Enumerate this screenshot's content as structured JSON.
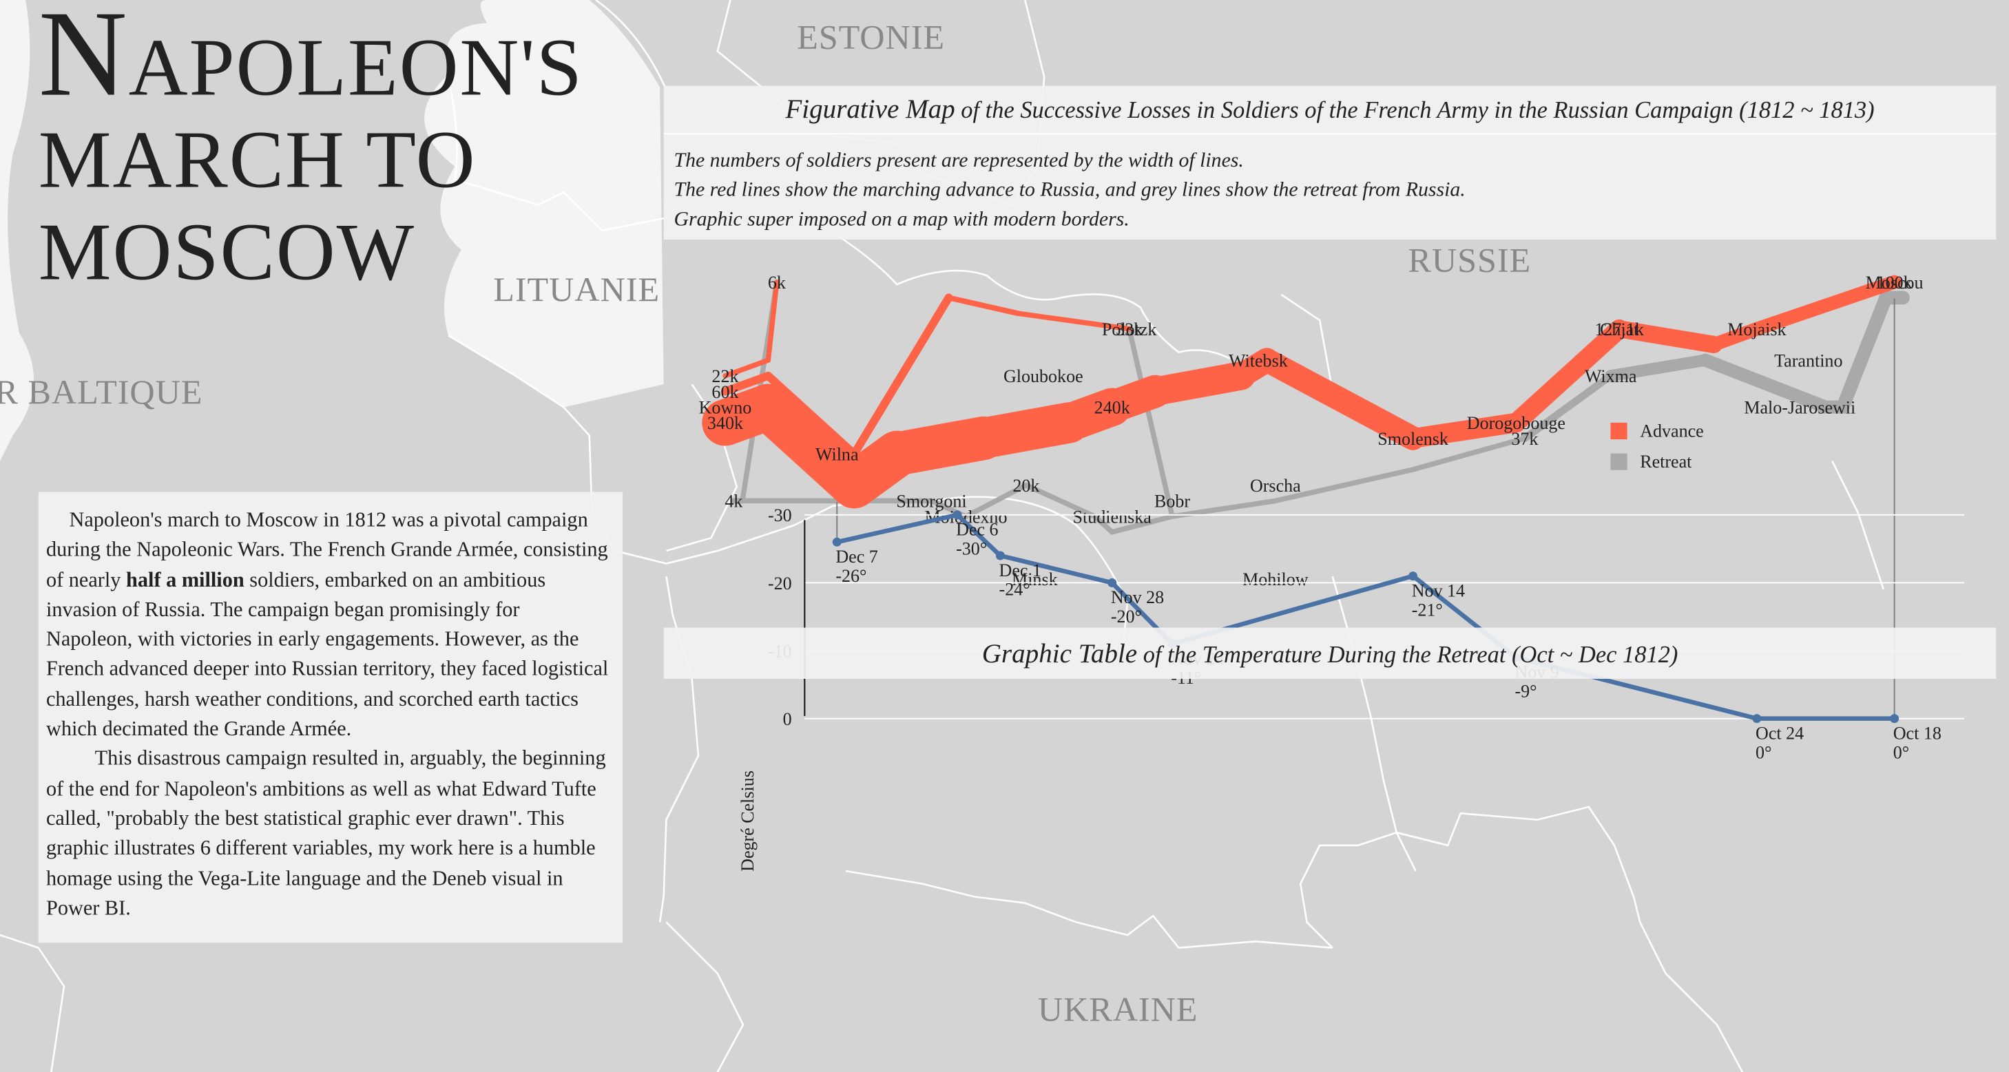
{
  "title": {
    "first_letter": "N",
    "line1_rest": "APOLEON'S",
    "line2": "MARCH TO",
    "line3": "MOSCOW"
  },
  "countries": {
    "estonia": "ESTONIE",
    "lithuania": "LITUANIE",
    "baltic": "R BALTIQUE",
    "russia": "RUSSIE",
    "ukraine": "UKRAINE"
  },
  "map_caption": {
    "title_em": "Figurative Map",
    "title_rest": " of the Successive Losses in Soldiers of the French Army in the Russian Campaign (1812 ~ 1813)",
    "lines": [
      "The numbers of soldiers present are represented by the width of lines.",
      "The red lines show the marching advance to Russia, and grey lines show the retreat from Russia.",
      "Graphic super imposed on a map with modern borders."
    ]
  },
  "temp_caption": {
    "title_em": "Graphic Table",
    "title_rest": " of the Temperature During the Retreat (Oct ~ Dec 1812)"
  },
  "description": {
    "p1_before": "Napoleon's march to Moscow in 1812 was a pivotal campaign during the Napoleonic Wars. The French Grande Armée, consisting of nearly ",
    "p1_bold": "half a million",
    "p1_after": " soldiers, embarked on an ambitious invasion of Russia. The campaign began promisingly for Napoleon, with victories in early engagements. However, as the French advanced deeper into Russian territory, they faced logistical challenges, harsh weather conditions, and scorched earth tactics which decimated the Grande Armée.",
    "p2": "This disastrous campaign resulted in, arguably, the beginning of the end for Napoleon's ambitions as well as what Edward Tufte called, \"probably the best statistical graphic ever drawn\".  This graphic illustrates 6 different variables, my work here is a humble homage using the Vega-Lite language and the Deneb visual in Power BI."
  },
  "colors": {
    "advance": "#ff6347",
    "retreat": "#a9a9a9",
    "temperature": "#4a72a4",
    "background": "#d4d4d4",
    "sea": "#f4f4f4",
    "panel": "#f2f2f2"
  },
  "chart_data": [
    {
      "type": "line",
      "subtype": "flow-map",
      "legend": {
        "position": "right",
        "entries": [
          {
            "label": "Advance",
            "color": "#ff6347"
          },
          {
            "label": "Retreat",
            "color": "#a9a9a9"
          }
        ]
      },
      "coordinates": "lon/lat",
      "series": [
        {
          "name": "Advance",
          "direction": "A",
          "group": 1,
          "points": [
            {
              "lon": 24.0,
              "lat": 54.9,
              "survivors": 340000
            },
            {
              "lon": 24.5,
              "lat": 55.0,
              "survivors": 340000
            },
            {
              "lon": 25.5,
              "lat": 54.5,
              "survivors": 340000
            },
            {
              "lon": 26.0,
              "lat": 54.7,
              "survivors": 320000
            },
            {
              "lon": 27.0,
              "lat": 54.8,
              "survivors": 300000
            },
            {
              "lon": 28.0,
              "lat": 54.9,
              "survivors": 280000
            },
            {
              "lon": 28.5,
              "lat": 55.0,
              "survivors": 240000
            },
            {
              "lon": 29.0,
              "lat": 55.1,
              "survivors": 210000
            },
            {
              "lon": 30.0,
              "lat": 55.2,
              "survivors": 180000
            },
            {
              "lon": 30.3,
              "lat": 55.3,
              "survivors": 175000
            },
            {
              "lon": 32.0,
              "lat": 54.8,
              "survivors": 145000
            },
            {
              "lon": 33.2,
              "lat": 54.9,
              "survivors": 140000
            },
            {
              "lon": 34.4,
              "lat": 55.5,
              "survivors": 127100
            },
            {
              "lon": 35.5,
              "lat": 55.4,
              "survivors": 100000
            },
            {
              "lon": 36.0,
              "lat": 55.5,
              "survivors": 100000
            },
            {
              "lon": 37.6,
              "lat": 55.8,
              "survivors": 100000
            }
          ]
        },
        {
          "name": "Retreat",
          "direction": "R",
          "group": 1,
          "points": [
            {
              "lon": 37.7,
              "lat": 55.7,
              "survivors": 100000
            },
            {
              "lon": 37.5,
              "lat": 55.7,
              "survivors": 98000
            },
            {
              "lon": 37.0,
              "lat": 55.0,
              "survivors": 97000
            },
            {
              "lon": 36.8,
              "lat": 55.0,
              "survivors": 96000
            },
            {
              "lon": 35.4,
              "lat": 55.3,
              "survivors": 87000
            },
            {
              "lon": 34.3,
              "lat": 55.2,
              "survivors": 55000
            },
            {
              "lon": 33.3,
              "lat": 54.8,
              "survivors": 37000
            },
            {
              "lon": 32.0,
              "lat": 54.6,
              "survivors": 24000
            },
            {
              "lon": 30.4,
              "lat": 54.4,
              "survivors": 20000
            },
            {
              "lon": 29.2,
              "lat": 54.3,
              "survivors": 20000
            },
            {
              "lon": 28.5,
              "lat": 54.2,
              "survivors": 20000
            },
            {
              "lon": 28.3,
              "lat": 54.3,
              "survivors": 20000
            },
            {
              "lon": 27.5,
              "lat": 54.5,
              "survivors": 20000
            },
            {
              "lon": 26.8,
              "lat": 54.3,
              "survivors": 12000
            },
            {
              "lon": 26.4,
              "lat": 54.4,
              "survivors": 14000
            },
            {
              "lon": 25.0,
              "lat": 54.4,
              "survivors": 8000
            },
            {
              "lon": 24.4,
              "lat": 54.4,
              "survivors": 4000
            },
            {
              "lon": 24.2,
              "lat": 54.4,
              "survivors": 4000
            },
            {
              "lon": 24.1,
              "lat": 54.4,
              "survivors": 4000
            }
          ]
        },
        {
          "name": "Advance",
          "direction": "A",
          "group": 2,
          "points": [
            {
              "lon": 24.0,
              "lat": 55.1,
              "survivors": 60000
            },
            {
              "lon": 24.5,
              "lat": 55.2,
              "survivors": 60000
            },
            {
              "lon": 25.5,
              "lat": 54.7,
              "survivors": 60000
            },
            {
              "lon": 26.6,
              "lat": 55.7,
              "survivors": 40000
            },
            {
              "lon": 27.4,
              "lat": 55.6,
              "survivors": 33000
            },
            {
              "lon": 28.7,
              "lat": 55.5,
              "survivors": 33000
            }
          ]
        },
        {
          "name": "Retreat",
          "direction": "R",
          "group": 2,
          "points": [
            {
              "lon": 28.7,
              "lat": 55.5,
              "survivors": 33000
            },
            {
              "lon": 29.2,
              "lat": 54.3,
              "survivors": 30000
            },
            {
              "lon": 28.5,
              "lat": 54.2,
              "survivors": 30000
            },
            {
              "lon": 28.3,
              "lat": 54.3,
              "survivors": 28000
            }
          ]
        },
        {
          "name": "Advance",
          "direction": "A",
          "group": 3,
          "points": [
            {
              "lon": 24.0,
              "lat": 55.2,
              "survivors": 22000
            },
            {
              "lon": 24.5,
              "lat": 55.3,
              "survivors": 22000
            },
            {
              "lon": 24.6,
              "lat": 55.8,
              "survivors": 6000
            }
          ]
        },
        {
          "name": "Retreat",
          "direction": "R",
          "group": 3,
          "points": [
            {
              "lon": 24.6,
              "lat": 55.8,
              "survivors": 6000
            },
            {
              "lon": 24.2,
              "lat": 54.4,
              "survivors": 6000
            },
            {
              "lon": 24.1,
              "lat": 54.4,
              "survivors": 6000
            }
          ]
        }
      ],
      "cities": [
        {
          "name": "Kowno",
          "lon": 24.0,
          "lat": 55.0
        },
        {
          "name": "Wilna",
          "lon": 25.3,
          "lat": 54.7
        },
        {
          "name": "Smorgoni",
          "lon": 26.4,
          "lat": 54.4
        },
        {
          "name": "Moiodexno",
          "lon": 26.8,
          "lat": 54.3
        },
        {
          "name": "Gloubokoe",
          "lon": 27.7,
          "lat": 55.2
        },
        {
          "name": "Minsk",
          "lon": 27.6,
          "lat": 53.9
        },
        {
          "name": "Studienska",
          "lon": 28.5,
          "lat": 54.3
        },
        {
          "name": "Polotzk",
          "lon": 28.7,
          "lat": 55.5
        },
        {
          "name": "Bobr",
          "lon": 29.2,
          "lat": 54.4
        },
        {
          "name": "Witebsk",
          "lon": 30.2,
          "lat": 55.3
        },
        {
          "name": "Orscha",
          "lon": 30.4,
          "lat": 54.5
        },
        {
          "name": "Mohilow",
          "lon": 30.4,
          "lat": 53.9
        },
        {
          "name": "Smolensk",
          "lon": 32.0,
          "lat": 54.8
        },
        {
          "name": "Dorogobouge",
          "lon": 33.2,
          "lat": 54.9
        },
        {
          "name": "Wixma",
          "lon": 34.3,
          "lat": 55.2
        },
        {
          "name": "Chjat",
          "lon": 34.4,
          "lat": 55.5
        },
        {
          "name": "Mojaisk",
          "lon": 36.0,
          "lat": 55.5
        },
        {
          "name": "Moscou",
          "lon": 37.6,
          "lat": 55.8
        },
        {
          "name": "Tarantino",
          "lon": 36.6,
          "lat": 55.3
        },
        {
          "name": "Malo-Jarosewii",
          "lon": 36.5,
          "lat": 55.0
        }
      ],
      "survivor_labels": [
        {
          "text": "340k",
          "lon": 24.0,
          "lat": 54.9
        },
        {
          "text": "60k",
          "lon": 24.0,
          "lat": 55.1
        },
        {
          "text": "22k",
          "lon": 24.0,
          "lat": 55.2
        },
        {
          "text": "6k",
          "lon": 24.6,
          "lat": 55.8
        },
        {
          "text": "4k",
          "lon": 24.1,
          "lat": 54.4
        },
        {
          "text": "240k",
          "lon": 28.5,
          "lat": 55.0
        },
        {
          "text": "33k",
          "lon": 28.7,
          "lat": 55.5
        },
        {
          "text": "20k",
          "lon": 27.5,
          "lat": 54.5
        },
        {
          "text": "127.1k",
          "lon": 34.4,
          "lat": 55.5
        },
        {
          "text": "100k",
          "lon": 37.6,
          "lat": 55.8
        },
        {
          "text": "37k",
          "lon": 33.3,
          "lat": 54.8
        }
      ],
      "lon_range": [
        23.5,
        38.0
      ],
      "lat_range": [
        53.5,
        56.0
      ]
    },
    {
      "type": "line",
      "title": "Graphic Table of the Temperature During the Retreat (Oct ~ Dec 1812)",
      "xlabel": "",
      "ylabel": "Degré Celsius",
      "ylim": [
        -30,
        0
      ],
      "yticks": [
        0,
        -10,
        -20,
        -30
      ],
      "grid": true,
      "points": [
        {
          "date": "Oct 18",
          "label": "0°",
          "lon": 37.6,
          "temp": 0
        },
        {
          "date": "Oct 24",
          "label": "0°",
          "lon": 36.0,
          "temp": 0
        },
        {
          "date": "Nov 9",
          "label": "-9°",
          "lon": 33.2,
          "temp": -9
        },
        {
          "date": "Nov 14",
          "label": "-21°",
          "lon": 32.0,
          "temp": -21
        },
        {
          "date": "Nov 24",
          "label": "-11°",
          "lon": 29.2,
          "temp": -11
        },
        {
          "date": "Nov 28",
          "label": "-20°",
          "lon": 28.5,
          "temp": -20
        },
        {
          "date": "Dec 1",
          "label": "-24°",
          "lon": 27.2,
          "temp": -24
        },
        {
          "date": "Dec 6",
          "label": "-30°",
          "lon": 26.7,
          "temp": -30
        },
        {
          "date": "Dec 7",
          "label": "-26°",
          "lon": 25.3,
          "temp": -26
        }
      ]
    }
  ]
}
